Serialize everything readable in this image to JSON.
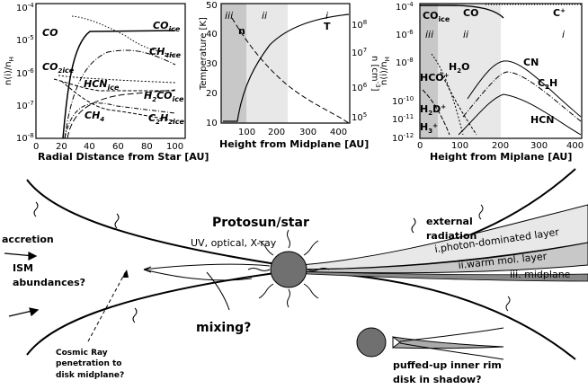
{
  "panels": {
    "left": {
      "ylabel": "n(i)/n",
      "ylabel_sub": "H",
      "xlabel": "Radial Distance from Star [AU]",
      "xticks": [
        "0",
        "20",
        "40",
        "60",
        "80",
        "100"
      ],
      "yticks": [
        "10",
        "10",
        "10",
        "10",
        "10"
      ],
      "yexp": [
        "-4",
        "-5",
        "-6",
        "-7",
        "-8"
      ],
      "labels": {
        "co": "CO",
        "co_ice": "CO",
        "co_ice_sub": "ice",
        "ch4_ice": "CH",
        "ch4_ice_sub": "ice",
        "co2_ice": "CO",
        "co2_ice_sub": "ice",
        "hcn_ice": "HCN",
        "hcn_ice_sub": "ice",
        "h2co_ice": "H",
        "h2co_ice_sub": "ice",
        "ch4": "CH",
        "c2h2_ice": "C",
        "c2h2_ice_sub": "ice"
      }
    },
    "middle": {
      "ylabel_left": "Temperature [K]",
      "ylabel_right": "n [cm",
      "xlabel": "Height from Midplane [AU]",
      "xticks": [
        "100",
        "200",
        "300",
        "400"
      ],
      "yticks_left": [
        "10",
        "20",
        "30",
        "40",
        "50"
      ],
      "yticks_right": [
        "10",
        "10",
        "10",
        "10"
      ],
      "yexp_right": [
        "8",
        "7",
        "6",
        "5"
      ],
      "region_iii": "iii",
      "region_ii": "ii",
      "region_i": "i",
      "curve_n": "n",
      "curve_t": "T"
    },
    "right": {
      "ylabel": "n(i)/n",
      "ylabel_sub": "H",
      "xlabel": "Height from Miplane [AU]",
      "xticks": [
        "0",
        "100",
        "200",
        "300",
        "400"
      ],
      "yexp": [
        "-4",
        "-6",
        "-8",
        "-10",
        "-11",
        "-12"
      ],
      "region_iii": "iii",
      "region_ii": "ii",
      "region_i": "i",
      "labels": {
        "co_ice": "CO",
        "co_ice_sub": "ice",
        "co": "CO",
        "cplus": "C",
        "hco": "HCO",
        "h2o": "H",
        "cn": "CN",
        "c2h": "C",
        "h2d": "H",
        "h3": "H",
        "hcn": "HCN"
      }
    }
  },
  "diagram": {
    "title": "Protosun/star",
    "uv": "UV, optical, X-ray",
    "external": "external",
    "radiation": "radiation",
    "accretion": "accretion",
    "ism": "ISM",
    "abundances": "abundances?",
    "mixing": "mixing?",
    "layer_i": "i.photon-dominated layer",
    "layer_ii": "ii.warm mol. layer",
    "layer_iii": "iii. midplane",
    "cosmic1": "Cosmic Ray",
    "cosmic2": "penetration to",
    "cosmic3": "disk midplane?",
    "puffed1": "puffed-up inner rim",
    "puffed2": "disk in shadow?"
  }
}
